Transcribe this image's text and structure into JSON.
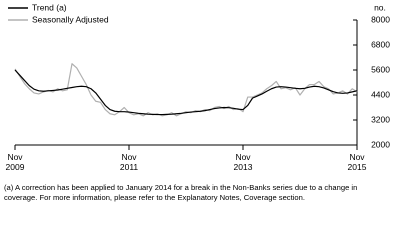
{
  "chart_data": {
    "type": "line",
    "unit_label": "no.",
    "categories": [
      "Nov\n2009",
      null,
      null,
      null,
      null,
      null,
      null,
      null,
      null,
      null,
      null,
      null,
      null,
      null,
      null,
      null,
      null,
      null,
      null,
      null,
      null,
      null,
      null,
      null,
      "Nov\n2011",
      null,
      null,
      null,
      null,
      null,
      null,
      null,
      null,
      null,
      null,
      null,
      null,
      null,
      null,
      null,
      null,
      null,
      null,
      null,
      null,
      null,
      null,
      null,
      "Nov\n2013",
      null,
      null,
      null,
      null,
      null,
      null,
      null,
      null,
      null,
      null,
      null,
      null,
      null,
      null,
      null,
      null,
      null,
      null,
      null,
      null,
      null,
      null,
      null,
      "Nov\n2015"
    ],
    "series": [
      {
        "name": "Trend (a)",
        "color": "#000000",
        "width": 1.2,
        "values": [
          5600,
          5350,
          5100,
          4850,
          4680,
          4600,
          4580,
          4600,
          4620,
          4640,
          4680,
          4720,
          4760,
          4800,
          4820,
          4800,
          4700,
          4500,
          4200,
          3900,
          3700,
          3620,
          3600,
          3600,
          3580,
          3550,
          3520,
          3500,
          3480,
          3470,
          3460,
          3460,
          3470,
          3480,
          3500,
          3520,
          3550,
          3580,
          3600,
          3620,
          3650,
          3700,
          3750,
          3780,
          3800,
          3790,
          3760,
          3720,
          3700,
          3900,
          4250,
          4350,
          4450,
          4580,
          4700,
          4780,
          4800,
          4780,
          4750,
          4720,
          4700,
          4720,
          4780,
          4820,
          4800,
          4740,
          4650,
          4560,
          4500,
          4480,
          4500,
          4550,
          4600
        ]
      },
      {
        "name": "Seasonally Adjusted",
        "color": "#b0b0b0",
        "width": 1.2,
        "values": [
          5650,
          5300,
          4950,
          4700,
          4500,
          4450,
          4550,
          4620,
          4550,
          4700,
          4600,
          4650,
          5900,
          5700,
          5300,
          4900,
          4400,
          4100,
          4050,
          3700,
          3500,
          3450,
          3600,
          3800,
          3550,
          3450,
          3500,
          3400,
          3550,
          3450,
          3500,
          3400,
          3450,
          3550,
          3400,
          3500,
          3600,
          3550,
          3650,
          3600,
          3700,
          3650,
          3800,
          3850,
          3750,
          3850,
          3700,
          3750,
          3600,
          4300,
          4300,
          4400,
          4500,
          4700,
          4850,
          5050,
          4700,
          4750,
          4650,
          4750,
          4400,
          4700,
          4900,
          4900,
          5050,
          4800,
          4700,
          4450,
          4500,
          4600,
          4450,
          4700,
          4550
        ]
      }
    ],
    "ylim": [
      2000,
      8000
    ],
    "yticks": [
      2000,
      3200,
      4400,
      5600,
      6800,
      8000
    ],
    "footnote": "(a)  A correction has been applied to January 2014 for a break in the Non-Banks series due to a change in coverage. For more information, please refer to the Explanatory Notes, Coverage section."
  }
}
